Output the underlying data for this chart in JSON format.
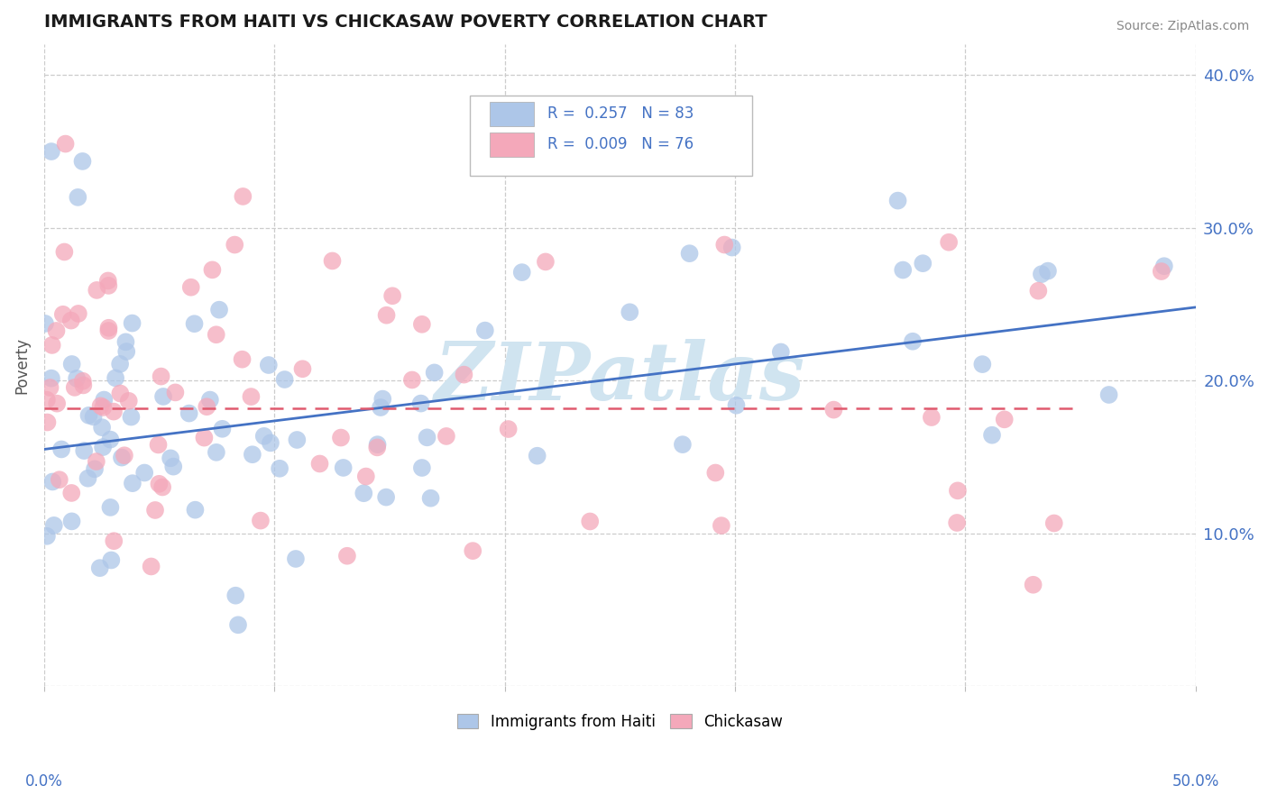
{
  "title": "IMMIGRANTS FROM HAITI VS CHICKASAW POVERTY CORRELATION CHART",
  "source": "Source: ZipAtlas.com",
  "ylabel": "Poverty",
  "xmin": 0.0,
  "xmax": 0.5,
  "ymin": 0.0,
  "ymax": 0.42,
  "haiti_R": 0.257,
  "haiti_N": 83,
  "chickasaw_R": 0.009,
  "chickasaw_N": 76,
  "haiti_color": "#adc6e8",
  "chickasaw_color": "#f4a8ba",
  "haiti_line_color": "#4472c4",
  "chickasaw_line_color": "#e05a6e",
  "background_color": "#ffffff",
  "watermark_text": "ZIPatlas",
  "watermark_color": "#d0e4f0",
  "haiti_line_start_y": 0.155,
  "haiti_line_end_y": 0.248,
  "chickasaw_line_y": 0.182,
  "tick_color": "#4472c4",
  "grid_color": "#cccccc",
  "title_color": "#1a1a1a",
  "ylabel_color": "#555555"
}
